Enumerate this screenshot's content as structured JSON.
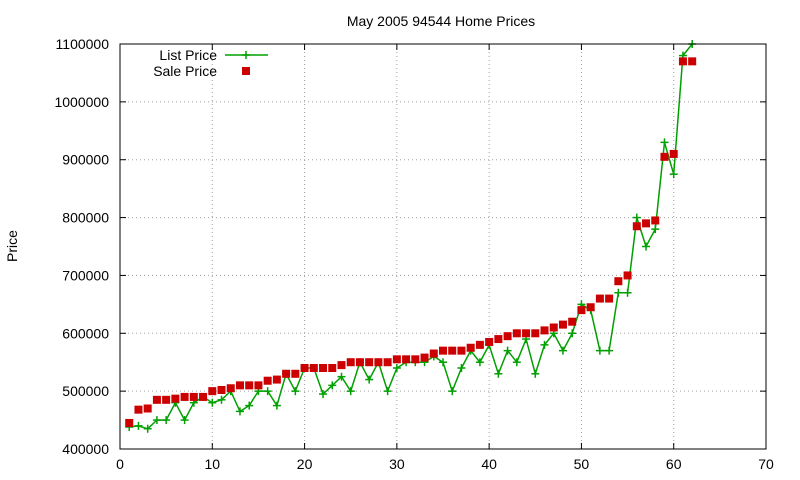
{
  "chart_data": {
    "type": "scatter",
    "title": "May 2005 94544 Home Prices",
    "xlabel": "",
    "ylabel": "Price",
    "xlim": [
      0,
      70
    ],
    "ylim": [
      400000,
      1100000
    ],
    "x_ticks": [
      0,
      10,
      20,
      30,
      40,
      50,
      60,
      70
    ],
    "y_ticks": [
      400000,
      500000,
      600000,
      700000,
      800000,
      900000,
      1000000,
      1100000
    ],
    "grid": true,
    "legend_position": "top-left",
    "series": [
      {
        "name": "List Price",
        "type": "line",
        "color": "#00a000",
        "marker": "plus",
        "x": [
          1,
          2,
          3,
          4,
          5,
          6,
          7,
          8,
          9,
          10,
          11,
          12,
          13,
          14,
          15,
          16,
          17,
          18,
          19,
          20,
          21,
          22,
          23,
          24,
          25,
          26,
          27,
          28,
          29,
          30,
          31,
          32,
          33,
          34,
          35,
          36,
          37,
          38,
          39,
          40,
          41,
          42,
          43,
          44,
          45,
          46,
          47,
          48,
          49,
          50,
          51,
          52,
          53,
          54,
          55,
          56,
          57,
          58,
          59,
          60,
          61,
          62
        ],
        "y": [
          438000,
          440000,
          435000,
          450000,
          450000,
          480000,
          450000,
          480000,
          490000,
          480000,
          485000,
          500000,
          465000,
          475000,
          500000,
          500000,
          475000,
          530000,
          500000,
          540000,
          540000,
          495000,
          510000,
          525000,
          500000,
          550000,
          520000,
          550000,
          500000,
          540000,
          550000,
          550000,
          550000,
          560000,
          550000,
          500000,
          540000,
          570000,
          550000,
          580000,
          530000,
          570000,
          550000,
          590000,
          530000,
          580000,
          600000,
          570000,
          600000,
          650000,
          640000,
          570000,
          570000,
          670000,
          670000,
          800000,
          750000,
          780000,
          930000,
          875000,
          1080000,
          1100000
        ]
      },
      {
        "name": "Sale Price",
        "type": "scatter",
        "color": "#cc0000",
        "marker": "square",
        "x": [
          1,
          2,
          3,
          4,
          5,
          6,
          7,
          8,
          9,
          10,
          11,
          12,
          13,
          14,
          15,
          16,
          17,
          18,
          19,
          20,
          21,
          22,
          23,
          24,
          25,
          26,
          27,
          28,
          29,
          30,
          31,
          32,
          33,
          34,
          35,
          36,
          37,
          38,
          39,
          40,
          41,
          42,
          43,
          44,
          45,
          46,
          47,
          48,
          49,
          50,
          51,
          52,
          53,
          54,
          55,
          56,
          57,
          58,
          59,
          60,
          61,
          62
        ],
        "y": [
          445000,
          468000,
          470000,
          485000,
          485000,
          487000,
          490000,
          490000,
          490000,
          500000,
          502000,
          505000,
          510000,
          510000,
          510000,
          518000,
          520000,
          530000,
          530000,
          540000,
          540000,
          540000,
          540000,
          545000,
          550000,
          550000,
          550000,
          550000,
          550000,
          555000,
          555000,
          555000,
          558000,
          565000,
          570000,
          570000,
          570000,
          575000,
          580000,
          585000,
          590000,
          595000,
          600000,
          600000,
          600000,
          605000,
          610000,
          615000,
          620000,
          640000,
          645000,
          660000,
          660000,
          690000,
          700000,
          785000,
          790000,
          795000,
          905000,
          910000,
          1070000,
          1070000
        ]
      }
    ]
  }
}
